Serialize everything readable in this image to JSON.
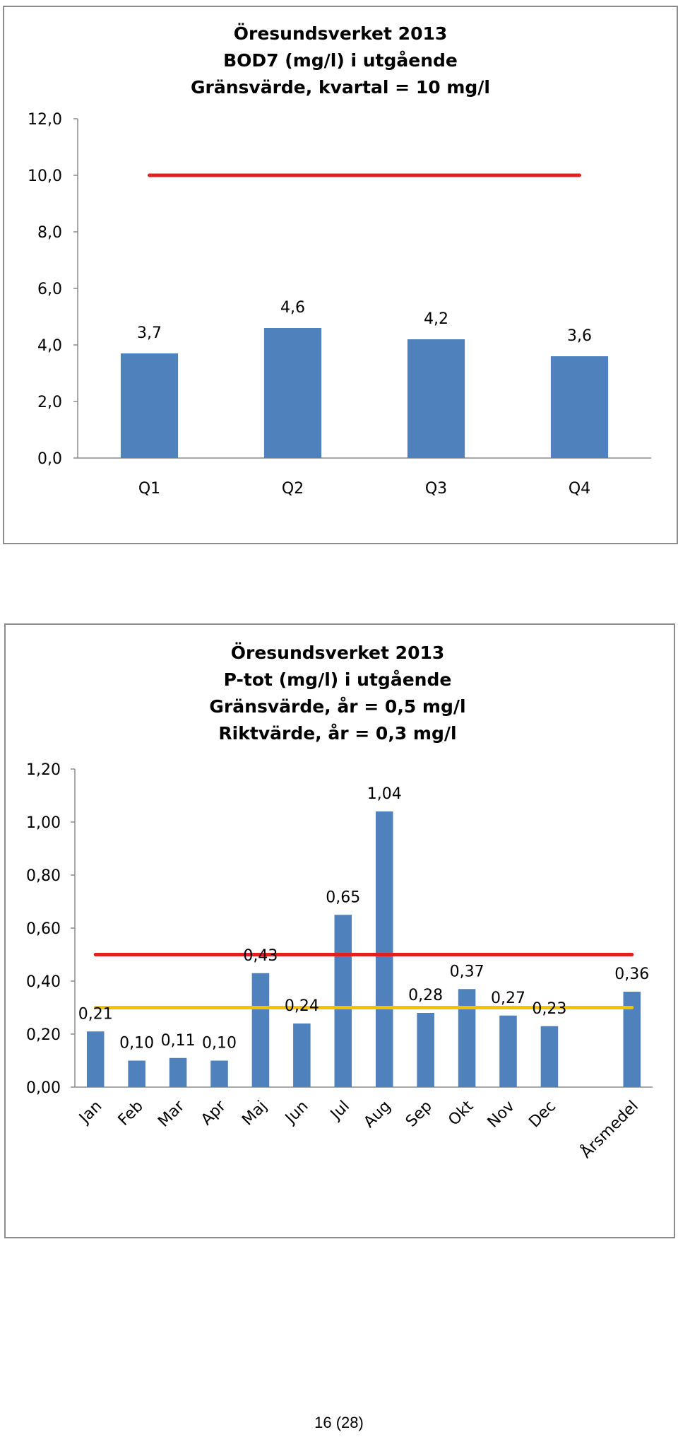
{
  "chart_data": [
    {
      "type": "bar",
      "title": [
        "Öresundsverket 2013",
        "BOD7 (mg/l) i utgående",
        "Gränsvärde, kvartal = 10 mg/l"
      ],
      "categories": [
        "Q1",
        "Q2",
        "Q3",
        "Q4"
      ],
      "values": [
        3.7,
        4.6,
        4.2,
        3.6
      ],
      "value_labels": [
        "3,7",
        "4,6",
        "4,2",
        "3,6"
      ],
      "ylim": [
        0,
        12
      ],
      "yticks": [
        0,
        2,
        4,
        6,
        8,
        10,
        12
      ],
      "ytick_labels": [
        "0,0",
        "2,0",
        "4,0",
        "6,0",
        "8,0",
        "10,0",
        "12,0"
      ],
      "reference_lines": [
        {
          "value": 10,
          "color": "#e02020"
        }
      ],
      "bar_color": "#4f81bd",
      "grid": false
    },
    {
      "type": "bar",
      "title": [
        "Öresundsverket 2013",
        "P-tot (mg/l) i utgående",
        "Gränsvärde, år = 0,5 mg/l",
        "Riktvärde, år = 0,3 mg/l"
      ],
      "categories": [
        "Jan",
        "Feb",
        "Mar",
        "Apr",
        "Maj",
        "Jun",
        "Jul",
        "Aug",
        "Sep",
        "Okt",
        "Nov",
        "Dec",
        "",
        "Årsmedel"
      ],
      "values": [
        0.21,
        0.1,
        0.11,
        0.1,
        0.43,
        0.24,
        0.65,
        1.04,
        0.28,
        0.37,
        0.27,
        0.23,
        null,
        0.36
      ],
      "value_labels": [
        "0,21",
        "0,10",
        "0,11",
        "0,10",
        "0,43",
        "0,24",
        "0,65",
        "1,04",
        "0,28",
        "0,37",
        "0,27",
        "0,23",
        "",
        "0,36"
      ],
      "ylim": [
        0,
        1.2
      ],
      "yticks": [
        0,
        0.2,
        0.4,
        0.6,
        0.8,
        1.0,
        1.2
      ],
      "ytick_labels": [
        "0,00",
        "0,20",
        "0,40",
        "0,60",
        "0,80",
        "1,00",
        "1,20"
      ],
      "reference_lines": [
        {
          "value": 0.5,
          "color": "#e02020"
        },
        {
          "value": 0.3,
          "color": "#f2c200"
        }
      ],
      "bar_color": "#4f81bd",
      "grid": false
    }
  ],
  "footer": {
    "page_number": "16 (28)"
  }
}
